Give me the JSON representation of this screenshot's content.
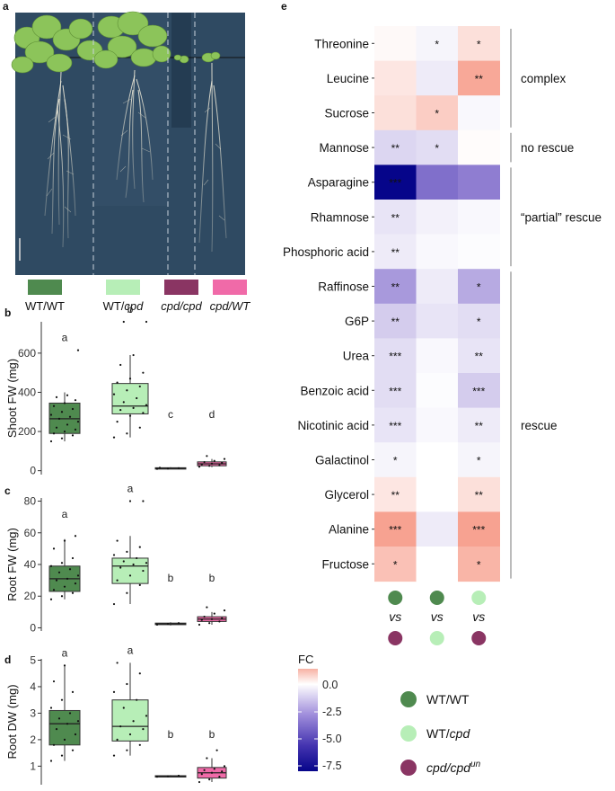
{
  "panel_labels": {
    "a": "a",
    "b": "b",
    "c": "c",
    "d": "d",
    "e": "e"
  },
  "colors": {
    "wt_wt": "#4f8a4f",
    "wt_cpd": "#b7eeb7",
    "cpd_cpd": "#8a3563",
    "cpd_wt": "#f06aa8",
    "photo_bg": "#2f4a62",
    "fc_pos": "#f5a595",
    "fc_zero": "#ffffff",
    "fc_neg": "#06058a"
  },
  "genotype_legend": [
    {
      "label_pre": "WT/WT",
      "label_em": "",
      "color": "#4f8a4f"
    },
    {
      "label_pre": "WT/",
      "label_em": "cpd",
      "color": "#b7eeb7"
    },
    {
      "label_pre": "",
      "label_em": "cpd/cpd",
      "color": "#8a3563"
    },
    {
      "label_pre": "",
      "label_em": "cpd/WT",
      "color": "#f06aa8"
    }
  ],
  "chart_data": [
    {
      "type": "box",
      "panel": "b",
      "ylabel": "Shoot FW (mg)",
      "ylim": [
        -20,
        760
      ],
      "yticks": [
        0,
        200,
        400,
        600
      ],
      "groups": [
        {
          "name": "WT/WT",
          "q1": 190,
          "median": 265,
          "q3": 345,
          "whisker_low": 150,
          "whisker_high": 400,
          "letter": "a",
          "points": [
            150,
            165,
            180,
            190,
            200,
            210,
            220,
            235,
            250,
            265,
            275,
            285,
            300,
            315,
            330,
            345,
            360,
            375,
            385,
            615
          ]
        },
        {
          "name": "WT/cpd",
          "q1": 290,
          "median": 330,
          "q3": 445,
          "whisker_low": 170,
          "whisker_high": 590,
          "letter": "b",
          "points": [
            170,
            190,
            220,
            250,
            280,
            295,
            310,
            320,
            335,
            350,
            370,
            390,
            410,
            430,
            450,
            470,
            500,
            540,
            590,
            760,
            760
          ]
        },
        {
          "name": "cpd/cpd",
          "q1": 10,
          "median": 12,
          "q3": 15,
          "whisker_low": 8,
          "whisker_high": 18,
          "letter": "c",
          "points": [
            9,
            11,
            13,
            15
          ]
        },
        {
          "name": "cpd/WT",
          "q1": 25,
          "median": 35,
          "q3": 45,
          "whisker_low": 18,
          "whisker_high": 60,
          "letter": "d",
          "points": [
            20,
            25,
            28,
            32,
            36,
            40,
            44,
            50,
            60,
            75
          ]
        }
      ]
    },
    {
      "type": "box",
      "panel": "c",
      "ylabel": "Root FW (mg)",
      "ylim": [
        -2,
        82
      ],
      "yticks": [
        0,
        20,
        40,
        60,
        80
      ],
      "groups": [
        {
          "name": "WT/WT",
          "q1": 23,
          "median": 31,
          "q3": 39,
          "whisker_low": 18,
          "whisker_high": 56,
          "letter": "a",
          "points": [
            18,
            20,
            22,
            24,
            26,
            28,
            30,
            31,
            33,
            35,
            37,
            39,
            41,
            44,
            50,
            55,
            58
          ]
        },
        {
          "name": "WT/cpd",
          "q1": 28,
          "median": 39,
          "q3": 44,
          "whisker_low": 15,
          "whisker_high": 58,
          "letter": "a",
          "points": [
            15,
            22,
            27,
            30,
            33,
            36,
            38,
            40,
            41,
            42,
            44,
            46,
            48,
            51,
            55,
            80,
            80
          ]
        },
        {
          "name": "cpd/cpd",
          "q1": 2,
          "median": 2.5,
          "q3": 3,
          "whisker_low": 1.5,
          "whisker_high": 3.5,
          "letter": "b",
          "points": [
            2,
            2.5,
            3
          ]
        },
        {
          "name": "cpd/WT",
          "q1": 4,
          "median": 5.5,
          "q3": 7,
          "whisker_low": 2,
          "whisker_high": 10,
          "letter": "b",
          "points": [
            2,
            3,
            4,
            5,
            5.5,
            6,
            7,
            9,
            11,
            13
          ]
        }
      ]
    },
    {
      "type": "box",
      "panel": "d",
      "ylabel": "Root DW (mg)",
      "ylim": [
        0.3,
        5.05
      ],
      "yticks": [
        1,
        2,
        3,
        4,
        5
      ],
      "groups": [
        {
          "name": "WT/WT",
          "q1": 1.8,
          "median": 2.6,
          "q3": 3.1,
          "whisker_low": 1.2,
          "whisker_high": 4.8,
          "letter": "a",
          "points": [
            1.2,
            1.4,
            1.6,
            1.8,
            2.0,
            2.2,
            2.4,
            2.6,
            2.7,
            2.8,
            3.0,
            3.2,
            3.5,
            3.8,
            4.2,
            4.8
          ]
        },
        {
          "name": "WT/cpd",
          "q1": 1.95,
          "median": 2.5,
          "q3": 3.5,
          "whisker_low": 1.4,
          "whisker_high": 4.9,
          "letter": "a",
          "points": [
            1.4,
            1.6,
            1.8,
            2.0,
            2.2,
            2.4,
            2.5,
            2.7,
            2.9,
            3.2,
            3.5,
            3.8,
            4.1,
            4.5,
            4.9
          ]
        },
        {
          "name": "cpd/cpd",
          "q1": 0.6,
          "median": 0.62,
          "q3": 0.64,
          "whisker_low": 0.58,
          "whisker_high": 0.66,
          "letter": "b",
          "points": [
            0.6,
            0.62,
            0.64
          ]
        },
        {
          "name": "cpd/WT",
          "q1": 0.55,
          "median": 0.75,
          "q3": 0.95,
          "whisker_low": 0.4,
          "whisker_high": 1.3,
          "letter": "b",
          "points": [
            0.4,
            0.5,
            0.6,
            0.7,
            0.75,
            0.8,
            0.85,
            0.9,
            1.0,
            1.3,
            1.6
          ]
        }
      ]
    },
    {
      "type": "heatmap",
      "panel": "e",
      "rows": [
        "Threonine",
        "Leucine",
        "Sucrose",
        "Mannose",
        "Asparagine",
        "Rhamnose",
        "Phosphoric acid",
        "Raffinose",
        "G6P",
        "Urea",
        "Benzoic acid",
        "Nicotinic acid",
        "Galactinol",
        "Glycerol",
        "Alanine",
        "Fructose"
      ],
      "columns": [
        {
          "top": "WT/WT",
          "vs": "vs",
          "bottom": "cpd/cpd"
        },
        {
          "top": "WT/WT",
          "vs": "vs",
          "bottom": "WT/cpd"
        },
        {
          "top": "WT/cpd",
          "vs": "vs",
          "bottom": "cpd/cpd"
        }
      ],
      "values": [
        [
          0.1,
          -0.3,
          0.5
        ],
        [
          0.4,
          -0.6,
          1.4
        ],
        [
          0.5,
          0.8,
          -0.2
        ],
        [
          -1.2,
          -1.0,
          0.05
        ],
        [
          -8.0,
          -4.2,
          -3.8
        ],
        [
          -0.8,
          -0.4,
          -0.2
        ],
        [
          -0.6,
          -0.2,
          -0.1
        ],
        [
          -3.0,
          -0.6,
          -2.5
        ],
        [
          -1.5,
          -0.8,
          -1.0
        ],
        [
          -1.0,
          -0.2,
          -0.8
        ],
        [
          -1.0,
          -0.1,
          -1.5
        ],
        [
          -0.8,
          -0.2,
          -0.6
        ],
        [
          -0.3,
          0.0,
          -0.3
        ],
        [
          0.4,
          0.0,
          0.5
        ],
        [
          1.5,
          -0.6,
          2.0
        ],
        [
          1.0,
          0.0,
          1.2
        ]
      ],
      "significance": [
        [
          "",
          "*",
          "*"
        ],
        [
          "",
          "",
          "**"
        ],
        [
          "",
          "*",
          ""
        ],
        [
          "**",
          "*",
          ""
        ],
        [
          "***",
          "",
          ""
        ],
        [
          "**",
          "",
          ""
        ],
        [
          "**",
          "",
          ""
        ],
        [
          "**",
          "",
          "*"
        ],
        [
          "**",
          "",
          "*"
        ],
        [
          "***",
          "",
          "**"
        ],
        [
          "***",
          "",
          "***"
        ],
        [
          "***",
          "",
          "**"
        ],
        [
          "*",
          "",
          "*"
        ],
        [
          "**",
          "",
          "**"
        ],
        [
          "***",
          "",
          "***"
        ],
        [
          "*",
          "",
          "*"
        ]
      ],
      "groups": [
        {
          "label": "complex",
          "start": 0,
          "end": 2
        },
        {
          "label": "no rescue",
          "start": 3,
          "end": 3
        },
        {
          "label": "“partial” rescue",
          "start": 4,
          "end": 6
        },
        {
          "label": "rescue",
          "start": 7,
          "end": 15
        }
      ],
      "colorbar": {
        "title": "FC",
        "min": -8.0,
        "max": 1.5,
        "ticks": [
          0.0,
          -2.5,
          -5.0,
          -7.5
        ],
        "tick_labels": [
          "0.0",
          "-2.5",
          "-5.0",
          "-7.5"
        ]
      }
    }
  ],
  "legend_e": [
    {
      "label_pre": "WT/WT",
      "label_em": "",
      "sup": "",
      "color": "#4f8a4f"
    },
    {
      "label_pre": "WT/",
      "label_em": "cpd",
      "sup": "",
      "color": "#b7eeb7"
    },
    {
      "label_pre": "",
      "label_em": "cpd/cpd",
      "sup": "un",
      "color": "#8a3563"
    }
  ]
}
